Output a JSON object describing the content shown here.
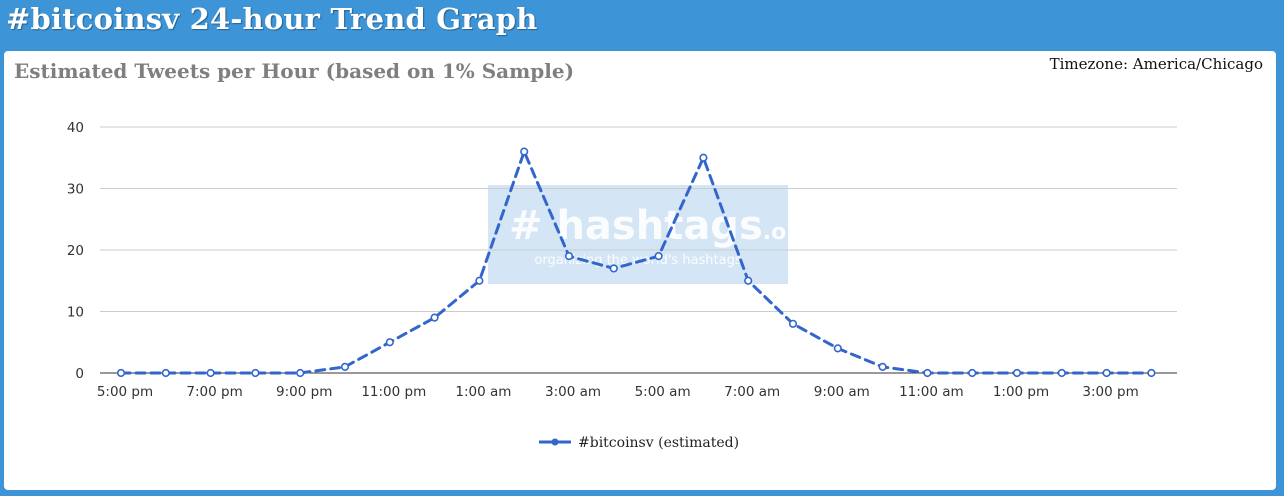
{
  "page": {
    "title": "#bitcoinsv 24-hour Trend Graph"
  },
  "panel": {
    "chart_title": "Estimated Tweets per Hour (based on 1% Sample)",
    "timezone": "Timezone: America/Chicago"
  },
  "watermark": {
    "brand": "# hashtags",
    "brand_suffix": ".org",
    "tagline": "organizing the world's hashtags"
  },
  "colors": {
    "header_bg": "#3d94d6",
    "series": "#3366cc",
    "grid": "#cccccc",
    "watermark_bg": "#c6dcf2"
  },
  "chart_data": {
    "type": "line",
    "title": "Estimated Tweets per Hour (based on 1% Sample)",
    "xlabel": "",
    "ylabel": "",
    "ylim": [
      0,
      40
    ],
    "yticks": [
      0,
      10,
      20,
      30,
      40
    ],
    "grid": true,
    "legend_position": "bottom",
    "x": [
      "5:00 pm",
      "6:00 pm",
      "7:00 pm",
      "8:00 pm",
      "9:00 pm",
      "10:00 pm",
      "11:00 pm",
      "12:00 am",
      "1:00 am",
      "2:00 am",
      "3:00 am",
      "4:00 am",
      "5:00 am",
      "6:00 am",
      "7:00 am",
      "8:00 am",
      "9:00 am",
      "10:00 am",
      "11:00 am",
      "12:00 pm",
      "1:00 pm",
      "2:00 pm",
      "3:00 pm",
      "4:00 pm"
    ],
    "xtick_labels": [
      "5:00 pm",
      "",
      "7:00 pm",
      "",
      "9:00 pm",
      "",
      "11:00 pm",
      "",
      "1:00 am",
      "",
      "3:00 am",
      "",
      "5:00 am",
      "",
      "7:00 am",
      "",
      "9:00 am",
      "",
      "11:00 am",
      "",
      "1:00 pm",
      "",
      "3:00 pm",
      ""
    ],
    "series": [
      {
        "name": "#bitcoinsv (estimated)",
        "values": [
          0,
          0,
          0,
          0,
          0,
          1,
          5,
          9,
          15,
          36,
          19,
          17,
          19,
          35,
          15,
          8,
          4,
          1,
          0,
          0,
          0,
          0,
          0,
          0
        ]
      }
    ]
  }
}
